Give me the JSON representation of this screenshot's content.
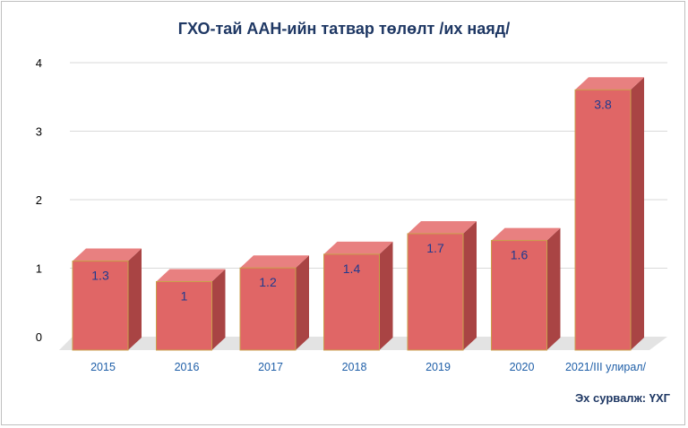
{
  "chart_data": {
    "type": "bar",
    "title": "ГХО-тай ААН-ийн татвар төлөлт /их наяд/",
    "categories": [
      "2015",
      "2016",
      "2017",
      "2018",
      "2019",
      "2020",
      "2021/III улирал/"
    ],
    "values": [
      1.3,
      1,
      1.2,
      1.4,
      1.7,
      1.6,
      3.8
    ],
    "data_labels": [
      "1.3",
      "1",
      "1.2",
      "1.4",
      "1.7",
      "1.6",
      "3.8"
    ],
    "yticks": [
      "0",
      "1",
      "2",
      "3",
      "4"
    ],
    "ylim": [
      0,
      4
    ],
    "xlabel": "",
    "ylabel": "",
    "grid": true,
    "style": "3d-column",
    "colors": {
      "bar_front": "#e06666",
      "bar_top": "#e88080",
      "bar_side": "#a94444",
      "bar_border": "#c9a04b",
      "floor": "#e3e3e3",
      "gridline": "#d9d9d9",
      "data_label": "#1f3a8f",
      "tick_label": "#1f5fa8",
      "title": "#1f3864"
    }
  },
  "source": "Эх сурвалж: ҮХГ"
}
